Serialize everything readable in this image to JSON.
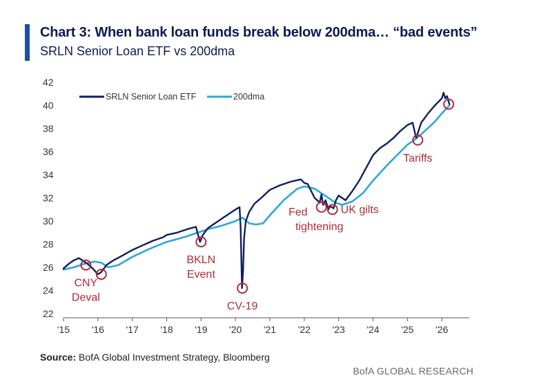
{
  "header": {
    "title": "Chart 3: When bank loan funds break below 200dma… “bad events”",
    "subtitle": "SRLN Senior Loan ETF vs 200dma"
  },
  "footer": {
    "source_label": "Source:",
    "source_text": " BofA Global Investment Strategy, Bloomberg",
    "brand": "BofA GLOBAL RESEARCH"
  },
  "colors": {
    "etf_line": "#0f1f5c",
    "dma_line": "#2aa7dc",
    "annotation": "#b22a35",
    "axis": "#555555",
    "title_bar": "#1f4fa3"
  },
  "chart_data": {
    "type": "line",
    "title": "SRLN Senior Loan ETF vs 200dma",
    "xlabel": "",
    "ylabel": "",
    "xlim": [
      2015.0,
      2026.8
    ],
    "ylim": [
      22,
      42
    ],
    "yticks": [
      22,
      24,
      26,
      28,
      30,
      32,
      34,
      36,
      38,
      40,
      42
    ],
    "xticks": [
      {
        "value": 2015,
        "label": "'15"
      },
      {
        "value": 2016,
        "label": "'16"
      },
      {
        "value": 2017,
        "label": "'17"
      },
      {
        "value": 2018,
        "label": "'18"
      },
      {
        "value": 2019,
        "label": "'19"
      },
      {
        "value": 2020,
        "label": "'20"
      },
      {
        "value": 2021,
        "label": "'21"
      },
      {
        "value": 2022,
        "label": "'22"
      },
      {
        "value": 2023,
        "label": "'23"
      },
      {
        "value": 2024,
        "label": "'24"
      },
      {
        "value": 2025,
        "label": "'25"
      },
      {
        "value": 2026,
        "label": "'26"
      }
    ],
    "grid": false,
    "legend": "top-left",
    "series": [
      {
        "name": "SRLN Senior Loan ETF",
        "color": "#0f1f5c",
        "x": [
          2015.0,
          2015.15,
          2015.3,
          2015.45,
          2015.55,
          2015.7,
          2015.85,
          2016.0,
          2016.1,
          2016.25,
          2016.45,
          2016.7,
          2017.0,
          2017.3,
          2017.6,
          2017.9,
          2018.0,
          2018.3,
          2018.6,
          2018.85,
          2018.97,
          2019.05,
          2019.2,
          2019.5,
          2019.8,
          2020.0,
          2020.12,
          2020.15,
          2020.19,
          2020.22,
          2020.25,
          2020.3,
          2020.4,
          2020.55,
          2020.75,
          2021.0,
          2021.3,
          2021.6,
          2021.9,
          2022.0,
          2022.1,
          2022.2,
          2022.3,
          2022.45,
          2022.5,
          2022.55,
          2022.62,
          2022.7,
          2022.75,
          2022.85,
          2022.92,
          2023.0,
          2023.1,
          2023.2,
          2023.4,
          2023.6,
          2023.8,
          2024.0,
          2024.2,
          2024.4,
          2024.6,
          2024.8,
          2025.0,
          2025.15,
          2025.25,
          2025.3,
          2025.4,
          2025.6,
          2025.8,
          2026.0,
          2026.05,
          2026.1,
          2026.15,
          2026.22
        ],
        "values": [
          25.9,
          26.3,
          26.6,
          26.8,
          26.6,
          26.3,
          25.9,
          25.4,
          25.6,
          26.2,
          26.6,
          27.0,
          27.5,
          27.9,
          28.3,
          28.6,
          28.8,
          29.0,
          29.3,
          29.5,
          28.2,
          28.8,
          29.4,
          30.0,
          30.6,
          31.0,
          31.2,
          29.5,
          24.2,
          25.6,
          28.5,
          30.0,
          30.8,
          31.5,
          32.0,
          32.7,
          33.1,
          33.4,
          33.6,
          33.3,
          33.2,
          32.6,
          32.0,
          31.6,
          32.3,
          31.4,
          31.8,
          31.0,
          31.3,
          31.1,
          31.8,
          32.2,
          32.0,
          31.8,
          32.6,
          33.5,
          34.6,
          35.7,
          36.3,
          36.7,
          37.2,
          37.8,
          38.3,
          38.5,
          37.2,
          37.6,
          38.5,
          39.3,
          40.0,
          40.6,
          41.1,
          40.6,
          40.8,
          40.1
        ]
      },
      {
        "name": "200dma",
        "color": "#2aa7dc",
        "x": [
          2015.0,
          2015.3,
          2015.6,
          2015.9,
          2016.1,
          2016.3,
          2016.6,
          2017.0,
          2017.5,
          2018.0,
          2018.5,
          2019.0,
          2019.2,
          2019.6,
          2020.0,
          2020.2,
          2020.4,
          2020.6,
          2020.8,
          2021.0,
          2021.4,
          2021.8,
          2022.0,
          2022.3,
          2022.6,
          2022.9,
          2023.1,
          2023.4,
          2023.7,
          2024.0,
          2024.4,
          2024.8,
          2025.0,
          2025.2,
          2025.4,
          2025.8,
          2026.0,
          2026.22
        ],
        "values": [
          25.8,
          26.0,
          26.3,
          26.5,
          26.4,
          26.0,
          26.2,
          26.9,
          27.6,
          28.2,
          28.6,
          29.1,
          29.3,
          29.6,
          30.0,
          30.3,
          29.8,
          29.7,
          29.8,
          30.5,
          31.8,
          32.8,
          33.0,
          32.8,
          32.2,
          31.6,
          31.4,
          31.7,
          32.4,
          33.5,
          34.8,
          36.0,
          36.6,
          37.0,
          37.5,
          38.6,
          39.3,
          40.0
        ]
      }
    ],
    "annotations": [
      {
        "label": "CNY",
        "label2": "Deval",
        "x": 2015.65,
        "y": 26.2,
        "anchor": "below"
      },
      {
        "label": "",
        "label2": "",
        "x": 2016.1,
        "y": 25.4,
        "anchor": "none"
      },
      {
        "label": "BKLN",
        "label2": "Event",
        "x": 2019.0,
        "y": 28.2,
        "anchor": "below"
      },
      {
        "label": "CV-19",
        "label2": "",
        "x": 2020.2,
        "y": 24.2,
        "anchor": "below"
      },
      {
        "label": "Fed",
        "label2": "tightening",
        "x": 2022.5,
        "y": 31.2,
        "anchor": "left"
      },
      {
        "label": "UK gilts",
        "label2": "",
        "x": 2022.82,
        "y": 31.0,
        "anchor": "right"
      },
      {
        "label": "Tariffs",
        "label2": "",
        "x": 2025.3,
        "y": 37.0,
        "anchor": "below"
      },
      {
        "label": "",
        "label2": "",
        "x": 2026.2,
        "y": 40.1,
        "anchor": "none"
      }
    ]
  }
}
